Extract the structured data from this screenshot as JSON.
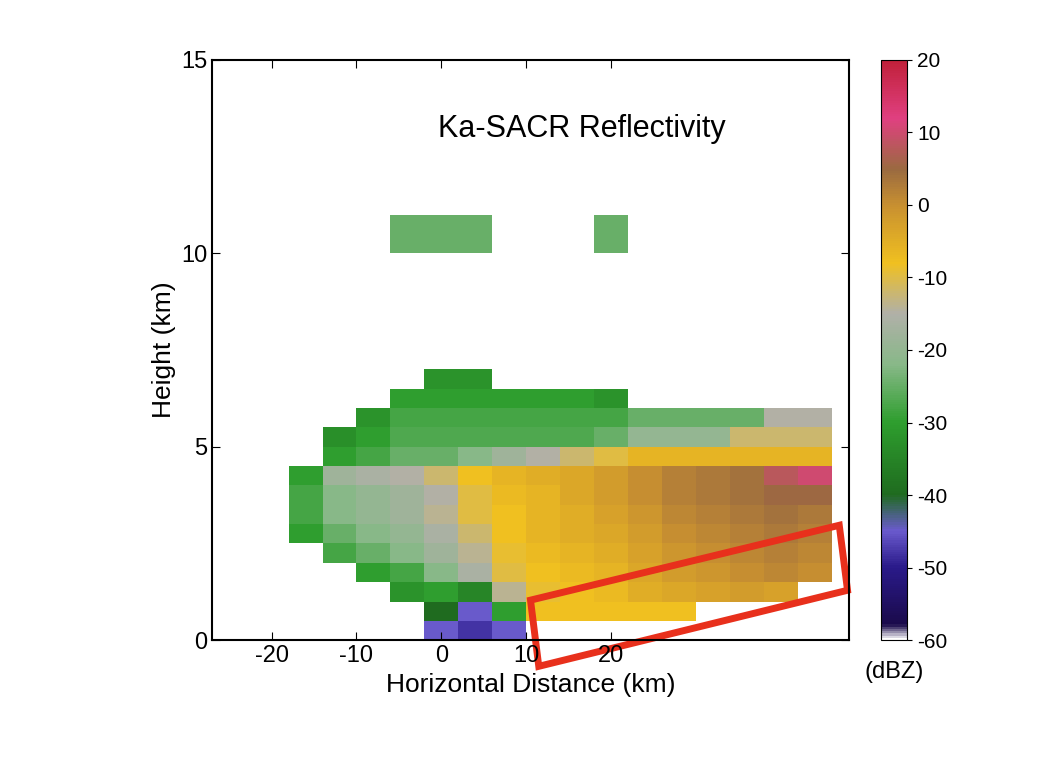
{
  "chart_data": {
    "type": "heatmap",
    "title": "Ka-SACR Reflectivity",
    "xlabel": "Horizontal Distance (km)",
    "ylabel": "Height (km)",
    "xlim": [
      -27,
      48
    ],
    "xticks": [
      -20,
      -10,
      0,
      10,
      20
    ],
    "ylim": [
      0,
      15
    ],
    "yticks": [
      0,
      5,
      10,
      15
    ],
    "x_edges": [
      -18,
      -14,
      -10,
      -6,
      -2,
      2,
      6,
      10,
      14,
      18,
      22,
      26,
      30,
      34,
      38,
      42,
      46
    ],
    "y_edges": [
      0,
      0.5,
      1,
      1.5,
      2,
      2.5,
      3,
      3.5,
      4,
      4.5,
      5,
      5.5,
      6,
      6.5,
      7,
      7.5,
      8,
      8.5,
      9,
      9.5,
      10,
      10.5,
      11
    ],
    "cells": [
      [
        null,
        null,
        null,
        null,
        -45,
        -48,
        -45,
        null,
        null,
        null,
        null,
        null,
        null,
        null,
        null,
        null
      ],
      [
        null,
        null,
        null,
        null,
        -40,
        -45,
        -30,
        -8,
        -8,
        -8,
        -8,
        -8,
        null,
        null,
        null,
        null
      ],
      [
        null,
        null,
        null,
        -32,
        -30,
        -35,
        -14,
        -9,
        -8,
        -7,
        -5,
        -4,
        -3,
        -2,
        -3,
        null
      ],
      [
        null,
        null,
        -30,
        -28,
        -22,
        -16,
        -10,
        -8,
        -7,
        -6,
        -4,
        -2,
        -1,
        0,
        1,
        0
      ],
      [
        null,
        -28,
        -25,
        -22,
        -18,
        -14,
        -9,
        -7,
        -6,
        -5,
        -3,
        -1,
        0,
        1,
        2,
        1
      ],
      [
        -30,
        -25,
        -22,
        -20,
        -16,
        -12,
        -8,
        -6,
        -5,
        -4,
        -2,
        0,
        1,
        2,
        3,
        2
      ],
      [
        -28,
        -22,
        -20,
        -18,
        -14,
        -10,
        -8,
        -6,
        -5,
        -3,
        -1,
        1,
        2,
        3,
        4,
        3
      ],
      [
        -28,
        -22,
        -20,
        -18,
        -15,
        -10,
        -7,
        -6,
        -4,
        -2,
        0,
        2,
        3,
        4,
        5,
        5
      ],
      [
        -30,
        -18,
        -16,
        -15,
        -12,
        -8,
        -6,
        -5,
        -4,
        -2,
        0,
        2,
        3,
        4,
        8,
        10
      ],
      [
        null,
        -30,
        -28,
        -25,
        -25,
        -22,
        -18,
        -15,
        -12,
        -10,
        -6,
        -6,
        -6,
        -6,
        -6,
        -6
      ],
      [
        null,
        -33,
        -30,
        -27,
        -27,
        -27,
        -27,
        -27,
        -27,
        -25,
        -20,
        -20,
        -20,
        -12,
        -12,
        -12
      ],
      [
        null,
        null,
        -32,
        -28,
        -28,
        -28,
        -28,
        -28,
        -28,
        -28,
        -25,
        -25,
        -25,
        -25,
        -15,
        -15
      ],
      [
        null,
        null,
        null,
        -30,
        -30,
        -30,
        -30,
        -30,
        -30,
        -32,
        null,
        null,
        null,
        null,
        null,
        null
      ],
      [
        null,
        null,
        null,
        null,
        -32,
        -32,
        null,
        null,
        null,
        null,
        null,
        null,
        null,
        null,
        null,
        null
      ],
      [
        null,
        null,
        null,
        null,
        null,
        null,
        null,
        null,
        null,
        null,
        null,
        null,
        null,
        null,
        null,
        null
      ],
      [
        null,
        null,
        null,
        null,
        null,
        null,
        null,
        null,
        null,
        null,
        null,
        null,
        null,
        null,
        null,
        null
      ],
      [
        null,
        null,
        null,
        null,
        null,
        null,
        null,
        null,
        null,
        null,
        null,
        null,
        null,
        null,
        null,
        null
      ],
      [
        null,
        null,
        null,
        null,
        null,
        null,
        null,
        null,
        null,
        null,
        null,
        null,
        null,
        null,
        null,
        null
      ],
      [
        null,
        null,
        null,
        null,
        null,
        null,
        null,
        null,
        null,
        null,
        null,
        null,
        null,
        null,
        null,
        null
      ],
      [
        null,
        null,
        null,
        null,
        null,
        null,
        null,
        null,
        null,
        null,
        null,
        null,
        null,
        null,
        null,
        null
      ],
      [
        null,
        null,
        null,
        -25,
        -25,
        -25,
        null,
        null,
        null,
        -25,
        null,
        null,
        null,
        null,
        null,
        null
      ],
      [
        null,
        null,
        null,
        -25,
        -25,
        -25,
        null,
        null,
        null,
        -25,
        null,
        null,
        null,
        null,
        null,
        null
      ]
    ],
    "colorbar_range": [
      -60,
      20
    ],
    "colorbar_ticks": [
      -60,
      -50,
      -40,
      -30,
      -20,
      -10,
      0,
      10,
      20
    ],
    "colorbar_label": "(dBZ)"
  }
}
